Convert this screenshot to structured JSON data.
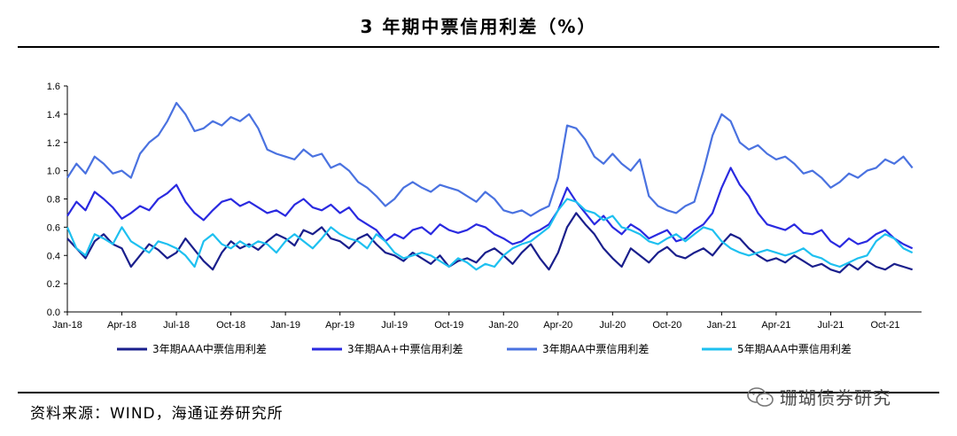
{
  "title": "3 年期中票信用利差（%）",
  "source": "资料来源：WIND，海通证券研究所",
  "watermark": "珊瑚债券研究",
  "chart_data": {
    "type": "line",
    "ylim": [
      0.0,
      1.6
    ],
    "yticks": [
      "0.0",
      "0.2",
      "0.4",
      "0.6",
      "0.8",
      "1.0",
      "1.2",
      "1.4",
      "1.6"
    ],
    "xlim": [
      0,
      47
    ],
    "xtick_labels": [
      "Jan-18",
      "Apr-18",
      "Jul-18",
      "Oct-18",
      "Jan-19",
      "Apr-19",
      "Jul-19",
      "Oct-19",
      "Jan-20",
      "Apr-20",
      "Jul-20",
      "Oct-20",
      "Jan-21",
      "Apr-21",
      "Jul-21",
      "Oct-21"
    ],
    "xtick_positions": [
      0,
      3,
      6,
      9,
      12,
      15,
      18,
      21,
      24,
      27,
      30,
      33,
      36,
      39,
      42,
      45
    ],
    "grid": false,
    "legend_position": "bottom",
    "series": [
      {
        "name": "3年期AAA中票信用利差",
        "color": "#1a1f8c",
        "x": [
          0,
          0.5,
          1,
          1.5,
          2,
          2.5,
          3,
          3.5,
          4,
          4.5,
          5,
          5.5,
          6,
          6.5,
          7,
          7.5,
          8,
          8.5,
          9,
          9.5,
          10,
          10.5,
          11,
          11.5,
          12,
          12.5,
          13,
          13.5,
          14,
          14.5,
          15,
          15.5,
          16,
          16.5,
          17,
          17.5,
          18,
          18.5,
          19,
          19.5,
          20,
          20.5,
          21,
          21.5,
          22,
          22.5,
          23,
          23.5,
          24,
          24.5,
          25,
          25.5,
          26,
          26.5,
          27,
          27.5,
          28,
          28.5,
          29,
          29.5,
          30,
          30.5,
          31,
          31.5,
          32,
          32.5,
          33,
          33.5,
          34,
          34.5,
          35,
          35.5,
          36,
          36.5,
          37,
          37.5,
          38,
          38.5,
          39,
          39.5,
          40,
          40.5,
          41,
          41.5,
          42,
          42.5,
          43,
          43.5,
          44,
          44.5,
          45,
          45.5,
          46,
          46.5
        ],
        "values": [
          0.52,
          0.45,
          0.38,
          0.5,
          0.55,
          0.48,
          0.45,
          0.32,
          0.4,
          0.48,
          0.44,
          0.38,
          0.42,
          0.52,
          0.44,
          0.36,
          0.3,
          0.42,
          0.5,
          0.45,
          0.48,
          0.44,
          0.5,
          0.55,
          0.52,
          0.47,
          0.58,
          0.55,
          0.6,
          0.52,
          0.5,
          0.45,
          0.52,
          0.55,
          0.48,
          0.42,
          0.4,
          0.36,
          0.42,
          0.38,
          0.34,
          0.4,
          0.32,
          0.36,
          0.38,
          0.35,
          0.42,
          0.45,
          0.4,
          0.34,
          0.42,
          0.48,
          0.38,
          0.3,
          0.42,
          0.6,
          0.7,
          0.62,
          0.55,
          0.45,
          0.38,
          0.32,
          0.45,
          0.4,
          0.35,
          0.42,
          0.46,
          0.4,
          0.38,
          0.42,
          0.45,
          0.4,
          0.48,
          0.55,
          0.52,
          0.45,
          0.4,
          0.36,
          0.38,
          0.35,
          0.4,
          0.36,
          0.32,
          0.34,
          0.3,
          0.28,
          0.34,
          0.3,
          0.36,
          0.32,
          0.3,
          0.34,
          0.32,
          0.3
        ]
      },
      {
        "name": "3年期AA+中票信用利差",
        "color": "#2a2ae0",
        "x": [
          0,
          0.5,
          1,
          1.5,
          2,
          2.5,
          3,
          3.5,
          4,
          4.5,
          5,
          5.5,
          6,
          6.5,
          7,
          7.5,
          8,
          8.5,
          9,
          9.5,
          10,
          10.5,
          11,
          11.5,
          12,
          12.5,
          13,
          13.5,
          14,
          14.5,
          15,
          15.5,
          16,
          16.5,
          17,
          17.5,
          18,
          18.5,
          19,
          19.5,
          20,
          20.5,
          21,
          21.5,
          22,
          22.5,
          23,
          23.5,
          24,
          24.5,
          25,
          25.5,
          26,
          26.5,
          27,
          27.5,
          28,
          28.5,
          29,
          29.5,
          30,
          30.5,
          31,
          31.5,
          32,
          32.5,
          33,
          33.5,
          34,
          34.5,
          35,
          35.5,
          36,
          36.5,
          37,
          37.5,
          38,
          38.5,
          39,
          39.5,
          40,
          40.5,
          41,
          41.5,
          42,
          42.5,
          43,
          43.5,
          44,
          44.5,
          45,
          45.5,
          46,
          46.5
        ],
        "values": [
          0.68,
          0.78,
          0.72,
          0.85,
          0.8,
          0.74,
          0.66,
          0.7,
          0.75,
          0.72,
          0.8,
          0.84,
          0.9,
          0.78,
          0.7,
          0.65,
          0.72,
          0.78,
          0.8,
          0.75,
          0.78,
          0.74,
          0.7,
          0.72,
          0.68,
          0.76,
          0.8,
          0.74,
          0.72,
          0.76,
          0.7,
          0.74,
          0.66,
          0.62,
          0.58,
          0.5,
          0.55,
          0.52,
          0.58,
          0.6,
          0.55,
          0.62,
          0.58,
          0.56,
          0.58,
          0.62,
          0.6,
          0.55,
          0.52,
          0.48,
          0.5,
          0.55,
          0.58,
          0.62,
          0.72,
          0.88,
          0.78,
          0.7,
          0.62,
          0.68,
          0.6,
          0.55,
          0.62,
          0.58,
          0.52,
          0.55,
          0.58,
          0.5,
          0.52,
          0.58,
          0.62,
          0.7,
          0.88,
          1.02,
          0.9,
          0.82,
          0.7,
          0.62,
          0.6,
          0.58,
          0.62,
          0.56,
          0.55,
          0.58,
          0.5,
          0.46,
          0.52,
          0.48,
          0.5,
          0.55,
          0.58,
          0.52,
          0.48,
          0.45
        ]
      },
      {
        "name": "3年期AA中票信用利差",
        "color": "#4a72e0",
        "x": [
          0,
          0.5,
          1,
          1.5,
          2,
          2.5,
          3,
          3.5,
          4,
          4.5,
          5,
          5.5,
          6,
          6.5,
          7,
          7.5,
          8,
          8.5,
          9,
          9.5,
          10,
          10.5,
          11,
          11.5,
          12,
          12.5,
          13,
          13.5,
          14,
          14.5,
          15,
          15.5,
          16,
          16.5,
          17,
          17.5,
          18,
          18.5,
          19,
          19.5,
          20,
          20.5,
          21,
          21.5,
          22,
          22.5,
          23,
          23.5,
          24,
          24.5,
          25,
          25.5,
          26,
          26.5,
          27,
          27.5,
          28,
          28.5,
          29,
          29.5,
          30,
          30.5,
          31,
          31.5,
          32,
          32.5,
          33,
          33.5,
          34,
          34.5,
          35,
          35.5,
          36,
          36.5,
          37,
          37.5,
          38,
          38.5,
          39,
          39.5,
          40,
          40.5,
          41,
          41.5,
          42,
          42.5,
          43,
          43.5,
          44,
          44.5,
          45,
          45.5,
          46,
          46.5
        ],
        "values": [
          0.95,
          1.05,
          0.98,
          1.1,
          1.05,
          0.98,
          1.0,
          0.95,
          1.12,
          1.2,
          1.25,
          1.35,
          1.48,
          1.4,
          1.28,
          1.3,
          1.35,
          1.32,
          1.38,
          1.35,
          1.4,
          1.3,
          1.15,
          1.12,
          1.1,
          1.08,
          1.15,
          1.1,
          1.12,
          1.02,
          1.05,
          1.0,
          0.92,
          0.88,
          0.82,
          0.75,
          0.8,
          0.88,
          0.92,
          0.88,
          0.85,
          0.9,
          0.88,
          0.86,
          0.82,
          0.78,
          0.85,
          0.8,
          0.72,
          0.7,
          0.72,
          0.68,
          0.72,
          0.75,
          0.95,
          1.32,
          1.3,
          1.22,
          1.1,
          1.05,
          1.12,
          1.05,
          1.0,
          1.08,
          0.82,
          0.75,
          0.72,
          0.7,
          0.75,
          0.78,
          1.0,
          1.25,
          1.4,
          1.35,
          1.2,
          1.15,
          1.18,
          1.12,
          1.08,
          1.1,
          1.05,
          0.98,
          1.0,
          0.95,
          0.88,
          0.92,
          0.98,
          0.95,
          1.0,
          1.02,
          1.08,
          1.05,
          1.1,
          1.02
        ]
      },
      {
        "name": "5年期AAA中票信用利差",
        "color": "#1ec0f0",
        "x": [
          0,
          0.5,
          1,
          1.5,
          2,
          2.5,
          3,
          3.5,
          4,
          4.5,
          5,
          5.5,
          6,
          6.5,
          7,
          7.5,
          8,
          8.5,
          9,
          9.5,
          10,
          10.5,
          11,
          11.5,
          12,
          12.5,
          13,
          13.5,
          14,
          14.5,
          15,
          15.5,
          16,
          16.5,
          17,
          17.5,
          18,
          18.5,
          19,
          19.5,
          20,
          20.5,
          21,
          21.5,
          22,
          22.5,
          23,
          23.5,
          24,
          24.5,
          25,
          25.5,
          26,
          26.5,
          27,
          27.5,
          28,
          28.5,
          29,
          29.5,
          30,
          30.5,
          31,
          31.5,
          32,
          32.5,
          33,
          33.5,
          34,
          34.5,
          35,
          35.5,
          36,
          36.5,
          37,
          37.5,
          38,
          38.5,
          39,
          39.5,
          40,
          40.5,
          41,
          41.5,
          42,
          42.5,
          43,
          43.5,
          44,
          44.5,
          45,
          45.5,
          46,
          46.5
        ],
        "values": [
          0.6,
          0.45,
          0.4,
          0.55,
          0.52,
          0.48,
          0.6,
          0.5,
          0.46,
          0.42,
          0.5,
          0.48,
          0.45,
          0.4,
          0.32,
          0.5,
          0.55,
          0.48,
          0.45,
          0.5,
          0.46,
          0.5,
          0.48,
          0.42,
          0.5,
          0.55,
          0.5,
          0.45,
          0.52,
          0.6,
          0.55,
          0.52,
          0.5,
          0.45,
          0.55,
          0.5,
          0.42,
          0.38,
          0.4,
          0.42,
          0.4,
          0.36,
          0.32,
          0.38,
          0.35,
          0.3,
          0.34,
          0.32,
          0.4,
          0.45,
          0.48,
          0.5,
          0.55,
          0.6,
          0.72,
          0.8,
          0.78,
          0.72,
          0.7,
          0.65,
          0.68,
          0.6,
          0.58,
          0.55,
          0.5,
          0.48,
          0.52,
          0.55,
          0.5,
          0.55,
          0.6,
          0.58,
          0.5,
          0.45,
          0.42,
          0.4,
          0.42,
          0.44,
          0.42,
          0.4,
          0.42,
          0.45,
          0.4,
          0.38,
          0.34,
          0.32,
          0.35,
          0.38,
          0.4,
          0.5,
          0.55,
          0.52,
          0.45,
          0.42
        ]
      }
    ]
  }
}
